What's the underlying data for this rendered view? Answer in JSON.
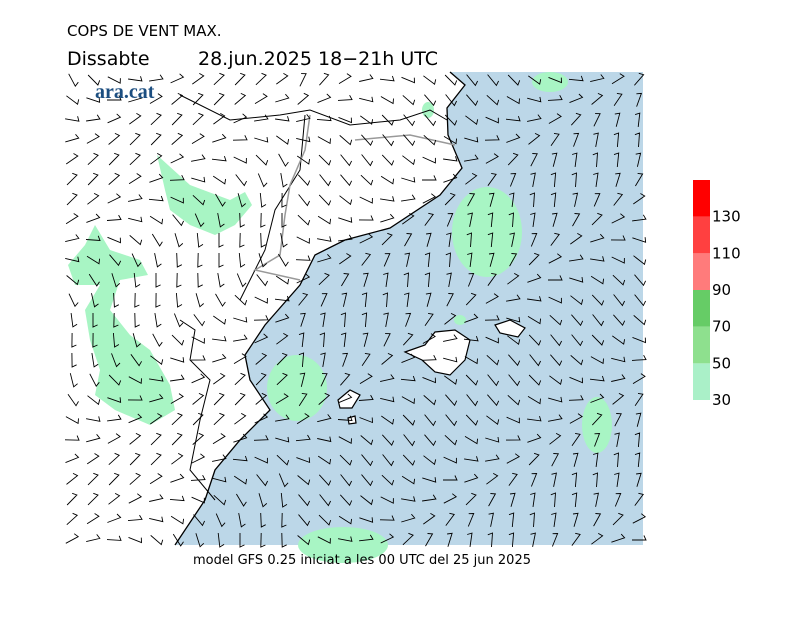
{
  "header": {
    "title": "COPS DE VENT MAX.",
    "day": "Dissabte",
    "date": "28.jun.2025 18−21h UTC",
    "logo": "ara.cat"
  },
  "legend": {
    "labels": [
      30,
      50,
      70,
      90,
      110,
      130
    ],
    "colors": [
      "#aaf0c8",
      "#8ee08e",
      "#66cc66",
      "#ff7b7b",
      "#ff4040",
      "#ff0000"
    ]
  },
  "footer": "model GFS 0.25 iniciat a les 00 UTC del 25 jun 2025"
}
